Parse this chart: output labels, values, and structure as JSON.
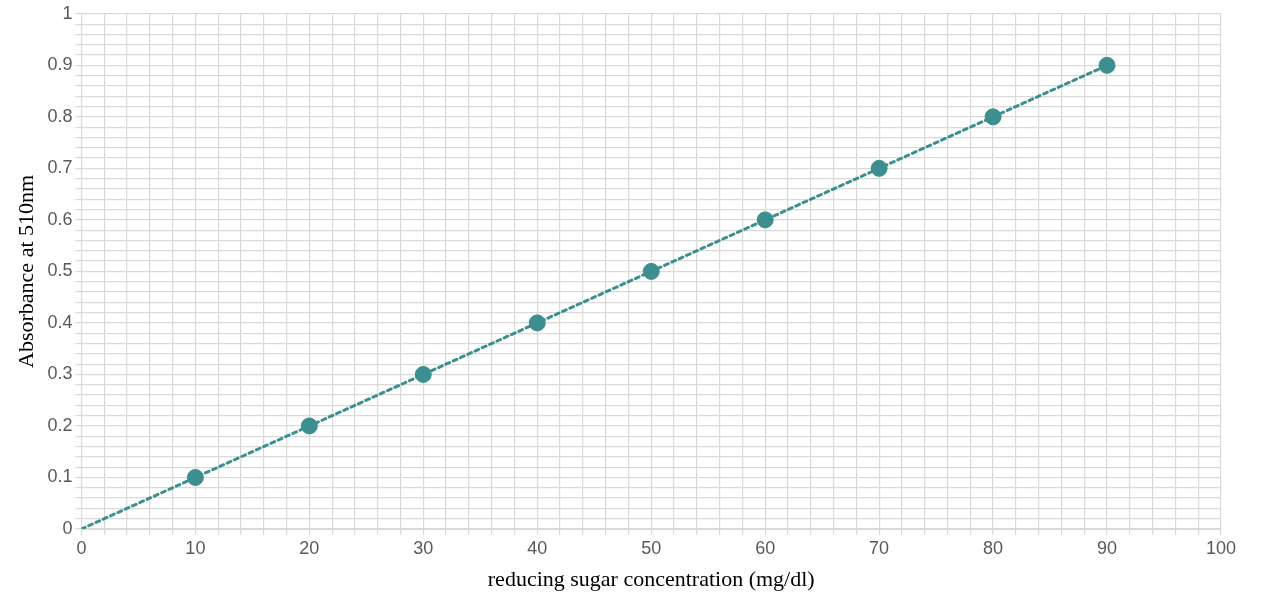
{
  "chart_data": {
    "type": "scatter",
    "xlabel": "reducing sugar concentration (mg/dl)",
    "ylabel": "Absorbance at 510nm",
    "xlim": [
      0,
      100
    ],
    "ylim": [
      0,
      1
    ],
    "xticks": [
      0,
      {
        "value": 2,
        "label": null
      },
      {
        "value": 4,
        "label": null
      },
      {
        "value": 6,
        "label": null
      },
      {
        "value": 8,
        "label": null
      },
      10,
      {
        "value": 12,
        "label": null
      },
      {
        "value": 14,
        "label": null
      },
      {
        "value": 16,
        "label": null
      },
      {
        "value": 18,
        "label": null
      },
      20,
      {
        "value": 22,
        "label": null
      },
      {
        "value": 24,
        "label": null
      },
      {
        "value": 26,
        "label": null
      },
      {
        "value": 28,
        "label": null
      },
      30,
      {
        "value": 32,
        "label": null
      },
      {
        "value": 34,
        "label": null
      },
      {
        "value": 36,
        "label": null
      },
      {
        "value": 38,
        "label": null
      },
      40,
      {
        "value": 42,
        "label": null
      },
      {
        "value": 44,
        "label": null
      },
      {
        "value": 46,
        "label": null
      },
      {
        "value": 48,
        "label": null
      },
      50,
      {
        "value": 52,
        "label": null
      },
      {
        "value": 54,
        "label": null
      },
      {
        "value": 56,
        "label": null
      },
      {
        "value": 58,
        "label": null
      },
      60,
      {
        "value": 62,
        "label": null
      },
      {
        "value": 64,
        "label": null
      },
      {
        "value": 66,
        "label": null
      },
      {
        "value": 68,
        "label": null
      },
      70,
      {
        "value": 72,
        "label": null
      },
      {
        "value": 74,
        "label": null
      },
      {
        "value": 76,
        "label": null
      },
      {
        "value": 78,
        "label": null
      },
      80,
      {
        "value": 82,
        "label": null
      },
      {
        "value": 84,
        "label": null
      },
      {
        "value": 86,
        "label": null
      },
      {
        "value": 88,
        "label": null
      },
      90,
      {
        "value": 92,
        "label": null
      },
      {
        "value": 94,
        "label": null
      },
      {
        "value": 96,
        "label": null
      },
      {
        "value": 98,
        "label": null
      },
      100
    ],
    "yticks": [
      0,
      {
        "value": 0.02,
        "label": null
      },
      {
        "value": 0.04,
        "label": null
      },
      {
        "value": 0.06,
        "label": null
      },
      {
        "value": 0.08,
        "label": null
      },
      0.1,
      {
        "value": 0.12,
        "label": null
      },
      {
        "value": 0.14,
        "label": null
      },
      {
        "value": 0.16,
        "label": null
      },
      {
        "value": 0.18,
        "label": null
      },
      0.2,
      {
        "value": 0.22,
        "label": null
      },
      {
        "value": 0.24,
        "label": null
      },
      {
        "value": 0.26,
        "label": null
      },
      {
        "value": 0.28,
        "label": null
      },
      0.3,
      {
        "value": 0.32,
        "label": null
      },
      {
        "value": 0.34,
        "label": null
      },
      {
        "value": 0.36,
        "label": null
      },
      {
        "value": 0.38,
        "label": null
      },
      0.4,
      {
        "value": 0.42,
        "label": null
      },
      {
        "value": 0.44,
        "label": null
      },
      {
        "value": 0.46,
        "label": null
      },
      {
        "value": 0.48,
        "label": null
      },
      0.5,
      {
        "value": 0.52,
        "label": null
      },
      {
        "value": 0.54,
        "label": null
      },
      {
        "value": 0.56,
        "label": null
      },
      {
        "value": 0.58,
        "label": null
      },
      0.6,
      {
        "value": 0.62,
        "label": null
      },
      {
        "value": 0.64,
        "label": null
      },
      {
        "value": 0.66,
        "label": null
      },
      {
        "value": 0.68,
        "label": null
      },
      0.7,
      {
        "value": 0.72,
        "label": null
      },
      {
        "value": 0.74,
        "label": null
      },
      {
        "value": 0.76,
        "label": null
      },
      {
        "value": 0.78,
        "label": null
      },
      0.8,
      {
        "value": 0.82,
        "label": null
      },
      {
        "value": 0.84,
        "label": null
      },
      {
        "value": 0.86,
        "label": null
      },
      {
        "value": 0.88,
        "label": null
      },
      0.9,
      {
        "value": 0.92,
        "label": null
      },
      {
        "value": 0.94,
        "label": null
      },
      {
        "value": 0.96,
        "label": null
      },
      {
        "value": 0.98,
        "label": null
      },
      1
    ],
    "grid": true,
    "legend": false,
    "marker": "circle",
    "x": [
      10,
      20,
      30,
      40,
      50,
      60,
      70,
      80,
      90
    ],
    "series": [
      {
        "type": "line",
        "color": "#3d8f8f",
        "x": [
          0,
          90
        ],
        "values": [
          0,
          0.9
        ],
        "line_style": "dotted",
        "marker": "none"
      },
      {
        "color": "#3d8f8f",
        "values": [
          0.1,
          0.2,
          0.3,
          0.4,
          0.5,
          0.6,
          0.7,
          0.8,
          0.9
        ]
      }
    ]
  }
}
